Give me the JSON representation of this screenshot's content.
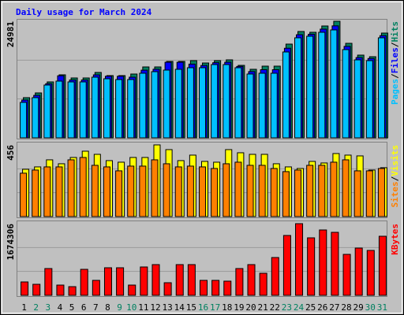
{
  "chart_data": [
    {
      "type": "bar",
      "title": "Daily usage for March 2024",
      "title_color": "#0000ff",
      "ylim": [
        0,
        24981
      ],
      "yticks": [
        24981
      ],
      "legend_separator": "/",
      "series": [
        {
          "name": "Pages",
          "color": "#00c0ff",
          "values": [
            7596,
            8609,
            11310,
            12154,
            11985,
            11985,
            12998,
            12660,
            12491,
            12491,
            13842,
            14179,
            14517,
            14686,
            15023,
            15023,
            15698,
            15698,
            15023,
            13673,
            13842,
            13842,
            18399,
            21438,
            21775,
            22619,
            23126,
            18906,
            16711,
            16542,
            21438
          ]
        },
        {
          "name": "Files",
          "color": "#0000ff",
          "values": [
            8100,
            9100,
            11600,
            13300,
            12400,
            12400,
            13500,
            13200,
            13200,
            13000,
            14500,
            14700,
            16200,
            16200,
            15800,
            15500,
            16100,
            16200,
            15300,
            14200,
            14600,
            14600,
            19200,
            22100,
            22200,
            23300,
            24000,
            19600,
            17200,
            17000,
            21900
          ]
        },
        {
          "name": "Hits",
          "color": "#008060",
          "values": [
            8609,
            9622,
            11985,
            13504,
            12829,
            12829,
            14010,
            13335,
            13335,
            13673,
            15192,
            15192,
            16374,
            16374,
            16542,
            16036,
            16542,
            16711,
            15530,
            14686,
            15361,
            15361,
            20087,
            22788,
            22619,
            23969,
            24981,
            20256,
            17724,
            17386,
            22450
          ]
        }
      ]
    },
    {
      "type": "bar",
      "ylim": [
        0,
        456
      ],
      "yticks": [
        456
      ],
      "legend_separator": "/",
      "series": [
        {
          "name": "Sites",
          "color": "#ff8000",
          "values": [
            276,
            296,
            316,
            316,
            361,
            376,
            326,
            316,
            291,
            321,
            321,
            361,
            336,
            316,
            321,
            316,
            306,
            336,
            346,
            326,
            326,
            306,
            286,
            296,
            326,
            326,
            346,
            361,
            291,
            291,
            306
          ]
        },
        {
          "name": "Visits",
          "color": "#ffff00",
          "values": [
            301,
            316,
            361,
            336,
            376,
            416,
            396,
            356,
            346,
            376,
            376,
            456,
            426,
            356,
            391,
            351,
            346,
            426,
            406,
            396,
            396,
            336,
            316,
            306,
            351,
            341,
            401,
            391,
            386,
            296,
            311
          ]
        }
      ]
    },
    {
      "type": "bar",
      "ylim": [
        0,
        1674306
      ],
      "yticks": [
        1674306
      ],
      "categories": [
        "1",
        "2",
        "3",
        "4",
        "5",
        "6",
        "7",
        "8",
        "9",
        "10",
        "11",
        "12",
        "13",
        "14",
        "15",
        "16",
        "17",
        "18",
        "19",
        "20",
        "21",
        "22",
        "23",
        "24",
        "25",
        "26",
        "27",
        "28",
        "29",
        "30",
        "31"
      ],
      "category_colors": [
        "#000000",
        "#008060",
        "#008060",
        "#000000",
        "#000000",
        "#000000",
        "#000000",
        "#000000",
        "#008060",
        "#008060",
        "#000000",
        "#000000",
        "#000000",
        "#000000",
        "#000000",
        "#008060",
        "#008060",
        "#000000",
        "#000000",
        "#000000",
        "#000000",
        "#000000",
        "#008060",
        "#008060",
        "#000000",
        "#000000",
        "#000000",
        "#000000",
        "#000000",
        "#008060",
        "#008060"
      ],
      "series": [
        {
          "name": "KBytes",
          "color": "#ff0000",
          "values": [
            312783,
            257586,
            625566,
            239187,
            202389,
            607167,
            349581,
            643965,
            643965,
            239187,
            662364,
            717561,
            294384,
            717561,
            717561,
            349581,
            349581,
            331182,
            625566,
            717561,
            515172,
            883152,
            1398324,
            1674306,
            1343127,
            1527117,
            1471920,
            956748,
            1103940,
            1048743,
            1379925
          ]
        }
      ]
    }
  ]
}
